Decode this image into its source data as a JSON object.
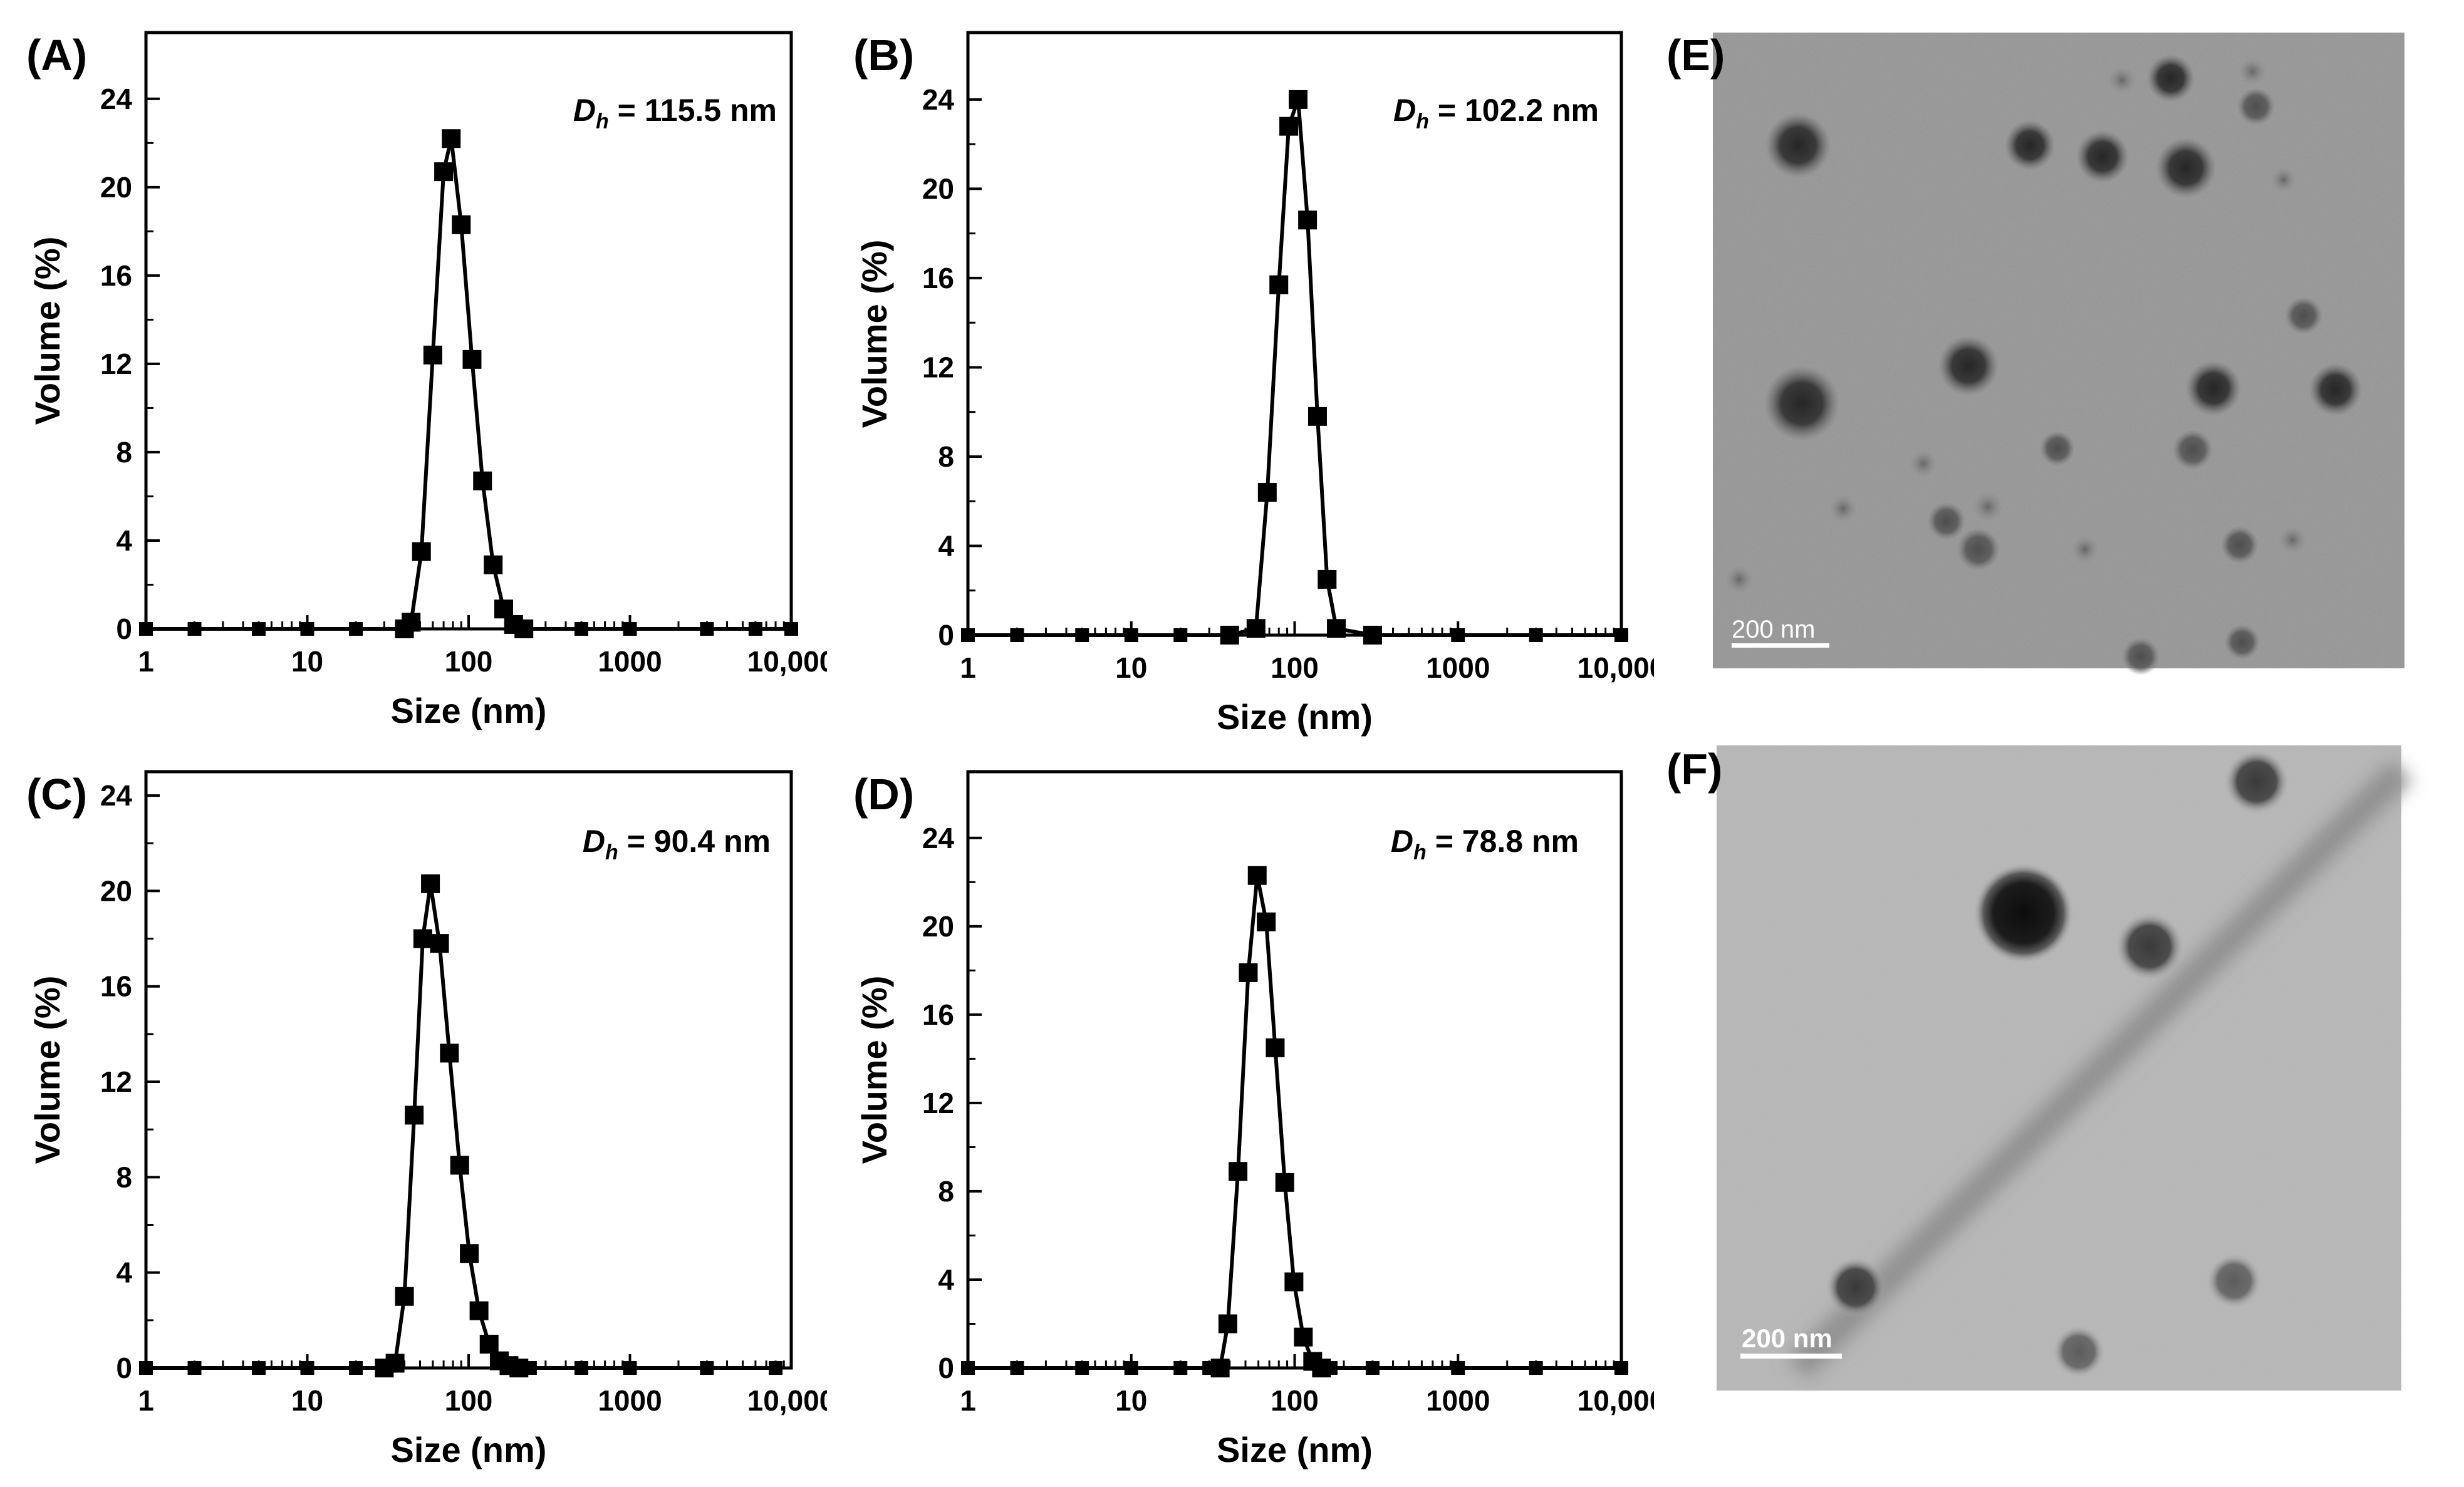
{
  "panel_labels": {
    "A": "(A)",
    "B": "(B)",
    "C": "(C)",
    "D": "(D)",
    "E": "(E)",
    "F": "(F)"
  },
  "dh_symbol": "D",
  "dh_subscript": "h",
  "tem": {
    "E": {
      "scale_bar_label": "200 nm"
    },
    "F": {
      "scale_bar_label": "200 nm"
    }
  },
  "chart_data": [
    {
      "panel": "A",
      "type": "scatter",
      "xlabel": "Size (nm)",
      "ylabel": "Volume (%)",
      "x_scale": "log",
      "xlim": [
        1,
        10000
      ],
      "ylim": [
        0,
        27
      ],
      "x_ticks": [
        1,
        10,
        100,
        1000,
        10000
      ],
      "x_tick_labels": [
        "1",
        "10",
        "100",
        "1000",
        "10,000"
      ],
      "y_ticks": [
        0,
        4,
        8,
        12,
        16,
        20,
        24
      ],
      "y_tick_labels": [
        "0",
        "4",
        "8",
        "12",
        "16",
        "20",
        "24"
      ],
      "annotation_value": " = 115.5 nm",
      "series": [
        {
          "x": [
            1,
            2,
            5,
            10,
            20,
            40,
            44,
            51,
            60,
            70,
            78,
            90,
            105,
            122,
            142,
            165,
            190,
            220,
            500,
            1000,
            3000,
            6000,
            10000
          ],
          "y": [
            0,
            0,
            0,
            0,
            0,
            0,
            0.3,
            3.5,
            12.4,
            20.7,
            22.2,
            18.3,
            12.2,
            6.7,
            2.9,
            0.9,
            0.2,
            0,
            0,
            0,
            0,
            0,
            0
          ]
        }
      ]
    },
    {
      "panel": "B",
      "type": "scatter",
      "xlabel": "Size (nm)",
      "ylabel": "Volume (%)",
      "x_scale": "log",
      "xlim": [
        1,
        10000
      ],
      "ylim": [
        0,
        27
      ],
      "x_ticks": [
        1,
        10,
        100,
        1000,
        10000
      ],
      "x_tick_labels": [
        "1",
        "10",
        "100",
        "1000",
        "10,000"
      ],
      "y_ticks": [
        0,
        4,
        8,
        12,
        16,
        20,
        24
      ],
      "y_tick_labels": [
        "0",
        "4",
        "8",
        "12",
        "16",
        "20",
        "24"
      ],
      "annotation_value": " = 102.2 nm",
      "series": [
        {
          "x": [
            1,
            2,
            5,
            10,
            20,
            40,
            58,
            68,
            80,
            92,
            105,
            120,
            138,
            158,
            180,
            300,
            1000,
            3000,
            10000
          ],
          "y": [
            0,
            0,
            0,
            0,
            0,
            0,
            0.3,
            6.4,
            15.7,
            22.8,
            24.0,
            18.6,
            9.8,
            2.5,
            0.3,
            0,
            0,
            0,
            0
          ]
        }
      ]
    },
    {
      "panel": "C",
      "type": "scatter",
      "xlabel": "Size (nm)",
      "ylabel": "Volume (%)",
      "x_scale": "log",
      "xlim": [
        1,
        10000
      ],
      "ylim": [
        0,
        25
      ],
      "x_ticks": [
        1,
        10,
        100,
        1000,
        10000
      ],
      "x_tick_labels": [
        "1",
        "10",
        "100",
        "1000",
        "10,000"
      ],
      "y_ticks": [
        0,
        4,
        8,
        12,
        16,
        20,
        24
      ],
      "y_tick_labels": [
        "0",
        "4",
        "8",
        "12",
        "16",
        "20",
        "24"
      ],
      "annotation_value": " = 90.4 nm",
      "series": [
        {
          "x": [
            1,
            2,
            5,
            10,
            20,
            30,
            35,
            40,
            46,
            52,
            58,
            66,
            76,
            88,
            101,
            116,
            134,
            155,
            178,
            205,
            240,
            500,
            1000,
            3000,
            8000
          ],
          "y": [
            0,
            0,
            0,
            0,
            0,
            0,
            0.2,
            3.0,
            10.6,
            18.0,
            20.3,
            17.8,
            13.2,
            8.5,
            4.8,
            2.4,
            1.0,
            0.3,
            0.1,
            0,
            0,
            0,
            0,
            0,
            0
          ]
        }
      ]
    },
    {
      "panel": "D",
      "type": "scatter",
      "xlabel": "Size (nm)",
      "ylabel": "Volume (%)",
      "x_scale": "log",
      "xlim": [
        1,
        10000
      ],
      "ylim": [
        0,
        27
      ],
      "x_ticks": [
        1,
        10,
        100,
        1000,
        10000
      ],
      "x_tick_labels": [
        "1",
        "10",
        "100",
        "1000",
        "10,000"
      ],
      "y_ticks": [
        0,
        4,
        8,
        12,
        16,
        20,
        24
      ],
      "y_tick_labels": [
        "0",
        "4",
        "8",
        "12",
        "16",
        "20",
        "24"
      ],
      "annotation_value": " = 78.8 nm",
      "series": [
        {
          "x": [
            1,
            2,
            5,
            10,
            20,
            30,
            35,
            39,
            45,
            52,
            59,
            67,
            76,
            87,
            99,
            113,
            129,
            146,
            166,
            300,
            1000,
            3000,
            10000
          ],
          "y": [
            0,
            0,
            0,
            0,
            0,
            0,
            0,
            2.0,
            8.9,
            17.9,
            22.3,
            20.2,
            14.5,
            8.4,
            3.9,
            1.4,
            0.3,
            0,
            0,
            0,
            0,
            0,
            0
          ]
        }
      ]
    }
  ]
}
